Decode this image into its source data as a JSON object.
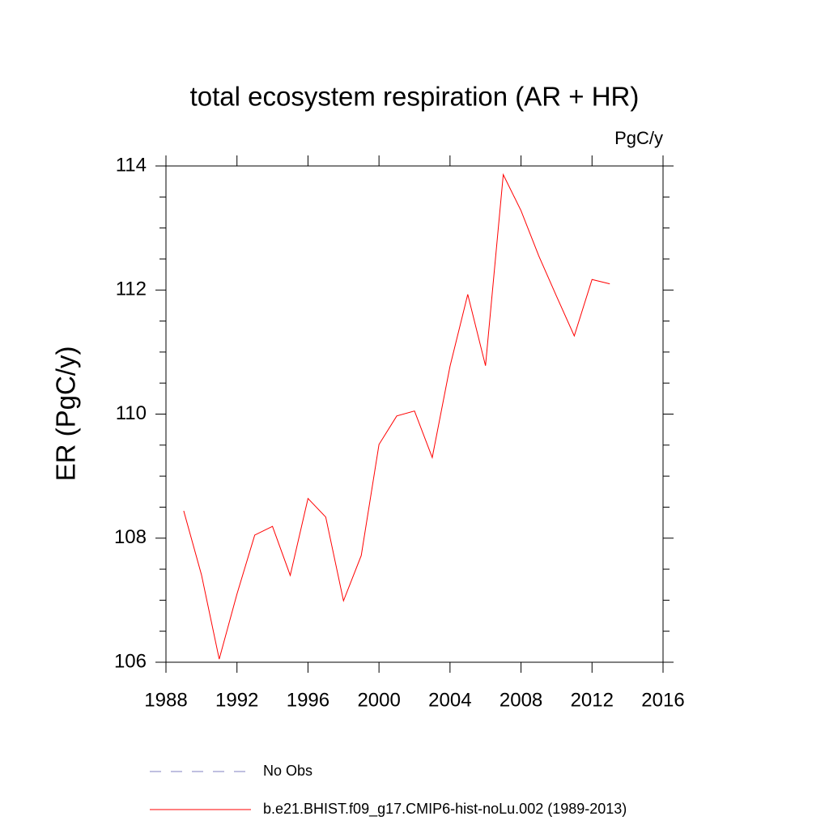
{
  "chart_data": {
    "type": "line",
    "title": "total ecosystem respiration (AR + HR)",
    "units": "PgC/y",
    "ylabel": "ER  (PgC/y)",
    "x": [
      1989,
      1990,
      1991,
      1992,
      1993,
      1994,
      1995,
      1996,
      1997,
      1998,
      1999,
      2000,
      2001,
      2002,
      2003,
      2004,
      2005,
      2006,
      2007,
      2008,
      2009,
      2010,
      2011,
      2012,
      2013
    ],
    "series": [
      {
        "name": "No Obs",
        "color": "#8080c0",
        "dashed": true,
        "values": [
          null,
          null,
          null,
          null,
          null,
          null,
          null,
          null,
          null,
          null,
          null,
          null,
          null,
          null,
          null,
          null,
          null,
          null,
          null,
          null,
          null,
          null,
          null,
          null,
          null
        ]
      },
      {
        "name": "b.e21.BHIST.f09_g17.CMIP6-hist-noLu.002 (1989-2013)",
        "color": "#ff0000",
        "dashed": false,
        "values": [
          108.44,
          107.41,
          106.05,
          107.1,
          108.05,
          108.19,
          107.4,
          108.64,
          108.34,
          106.99,
          107.72,
          109.51,
          109.97,
          110.05,
          109.3,
          110.77,
          111.93,
          110.78,
          113.86,
          113.28,
          112.55,
          111.9,
          111.26,
          112.17,
          112.1
        ]
      }
    ],
    "xlim": [
      1988,
      2016
    ],
    "xticks": [
      1988,
      1992,
      1996,
      2000,
      2004,
      2008,
      2012,
      2016
    ],
    "ylim": [
      106,
      114
    ],
    "yticks": [
      106,
      108,
      110,
      112,
      114
    ],
    "yminorticks": [
      106.5,
      107,
      107.5,
      108.5,
      109,
      109.5,
      110.5,
      111,
      111.5,
      112.5,
      113,
      113.5
    ]
  }
}
